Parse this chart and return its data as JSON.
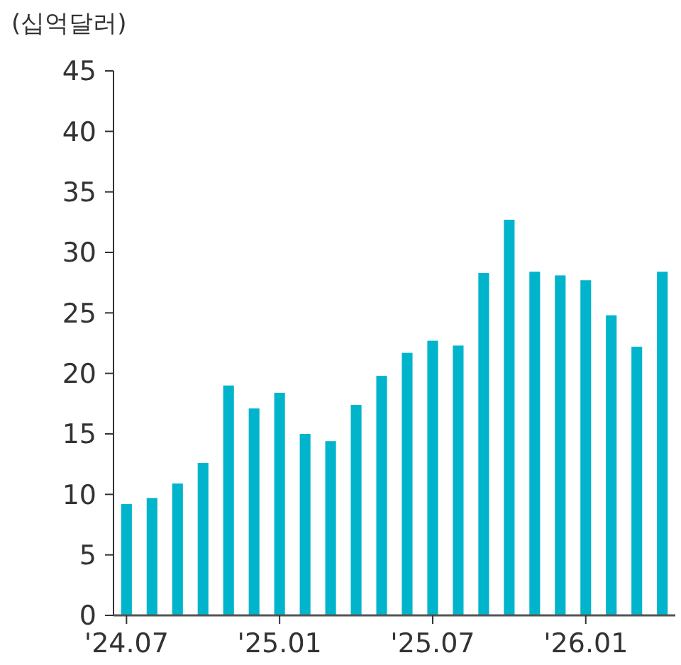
{
  "chart_data": {
    "type": "bar",
    "ylabel": "(십억달러)",
    "categories": [
      "'24.07",
      null,
      null,
      null,
      null,
      null,
      "'25.01",
      null,
      null,
      null,
      null,
      null,
      "'25.07",
      null,
      null,
      null,
      null,
      null,
      "'26.01",
      null,
      null,
      null
    ],
    "values": [
      9.2,
      9.7,
      10.9,
      12.6,
      19.0,
      17.1,
      18.4,
      15.0,
      14.4,
      17.4,
      19.8,
      21.7,
      22.7,
      22.3,
      28.3,
      32.7,
      28.4,
      28.1,
      27.7,
      24.8,
      22.2,
      28.4
    ],
    "color": "#00b4cc",
    "ylim": [
      0,
      45
    ],
    "yticks": [
      0,
      5,
      10,
      15,
      20,
      25,
      30,
      35,
      40,
      45
    ],
    "grid": false
  }
}
